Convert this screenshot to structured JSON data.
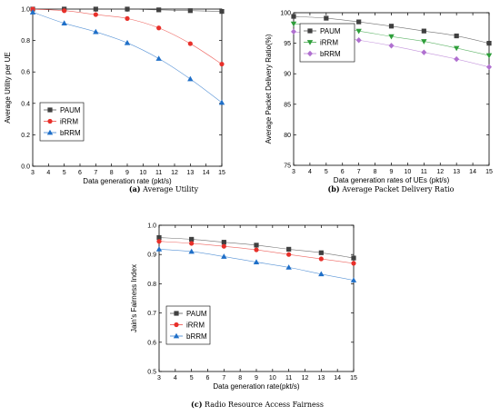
{
  "chart_data": [
    {
      "type": "line",
      "caption": {
        "letter": "(a)",
        "text": " Average Utility"
      },
      "xlabel": "Data generation rate (pkt/s)",
      "ylabel": "Average Utility per UE",
      "xlim": [
        3,
        15
      ],
      "ylim": [
        0.0,
        1.0
      ],
      "x_ticks": [
        3,
        4,
        5,
        6,
        7,
        8,
        9,
        10,
        11,
        12,
        13,
        14,
        15
      ],
      "y_ticks": [
        0.0,
        0.2,
        0.4,
        0.6,
        0.8,
        1.0
      ],
      "y_tick_labels": [
        "0.0",
        "0.2",
        "0.4",
        "0.6",
        "0.8",
        "1.0"
      ],
      "legend_position": "middle-left",
      "x": [
        3,
        5,
        7,
        9,
        11,
        13,
        15
      ],
      "series": [
        {
          "name": "PAUM",
          "color": "#404040",
          "marker": "square",
          "values": [
            1.0,
            1.0,
            1.0,
            1.0,
            0.995,
            0.99,
            0.985
          ]
        },
        {
          "name": "iRRM",
          "color": "#e8302a",
          "marker": "circle",
          "values": [
            1.0,
            0.99,
            0.965,
            0.94,
            0.88,
            0.78,
            0.65
          ]
        },
        {
          "name": "bRRM",
          "color": "#1f6fc8",
          "marker": "triangle",
          "values": [
            0.98,
            0.91,
            0.855,
            0.785,
            0.685,
            0.555,
            0.405
          ]
        }
      ]
    },
    {
      "type": "line",
      "caption": {
        "letter": "(b)",
        "text": " Average Packet Delivery Ratio"
      },
      "xlabel": "Data generation rates of UEs (pkt/s)",
      "ylabel": "Average Packet Delivery Ratio(%)",
      "xlim": [
        3,
        15
      ],
      "ylim": [
        75,
        100
      ],
      "x_ticks": [
        3,
        4,
        5,
        6,
        7,
        8,
        9,
        10,
        11,
        12,
        13,
        14,
        15
      ],
      "y_ticks": [
        75,
        80,
        85,
        90,
        95,
        100
      ],
      "y_tick_labels": [
        "75",
        "80",
        "85",
        "90",
        "95",
        "100"
      ],
      "legend_position": "upper-left",
      "x": [
        3,
        5,
        7,
        9,
        11,
        13,
        15
      ],
      "series": [
        {
          "name": "PAUM",
          "color": "#404040",
          "marker": "square",
          "values": [
            99.4,
            99.1,
            98.5,
            97.8,
            97.0,
            96.2,
            95.0
          ]
        },
        {
          "name": "iRRM",
          "color": "#2e9e3a",
          "marker": "triangle-down",
          "values": [
            98.2,
            97.7,
            97.0,
            96.1,
            95.3,
            94.2,
            93.0
          ]
        },
        {
          "name": "bRRM",
          "color": "#b070d0",
          "marker": "diamond",
          "values": [
            96.9,
            96.2,
            95.5,
            94.6,
            93.5,
            92.4,
            91.1
          ]
        }
      ]
    },
    {
      "type": "line",
      "caption": {
        "letter": "(c)",
        "text": " Radio Resource Access Fairness"
      },
      "xlabel": "Data generation rate(pkt/s)",
      "ylabel": "Jain's Fairness Index",
      "xlim": [
        3,
        15
      ],
      "ylim": [
        0.5,
        1.0
      ],
      "x_ticks": [
        3,
        4,
        5,
        6,
        7,
        8,
        9,
        10,
        11,
        12,
        13,
        14,
        15
      ],
      "y_ticks": [
        0.5,
        0.6,
        0.7,
        0.8,
        0.9,
        1.0
      ],
      "y_tick_labels": [
        "0.5",
        "0.6",
        "0.7",
        "0.8",
        "0.9",
        "1.0"
      ],
      "legend_position": "middle-left",
      "x": [
        3,
        5,
        7,
        9,
        11,
        13,
        15
      ],
      "series": [
        {
          "name": "PAUM",
          "color": "#404040",
          "marker": "square",
          "values": [
            0.958,
            0.952,
            0.942,
            0.932,
            0.918,
            0.906,
            0.888
          ]
        },
        {
          "name": "iRRM",
          "color": "#e8302a",
          "marker": "circle",
          "values": [
            0.945,
            0.938,
            0.928,
            0.916,
            0.9,
            0.885,
            0.87
          ]
        },
        {
          "name": "bRRM",
          "color": "#1f6fc8",
          "marker": "triangle",
          "values": [
            0.918,
            0.91,
            0.893,
            0.874,
            0.856,
            0.833,
            0.812
          ]
        }
      ]
    }
  ]
}
